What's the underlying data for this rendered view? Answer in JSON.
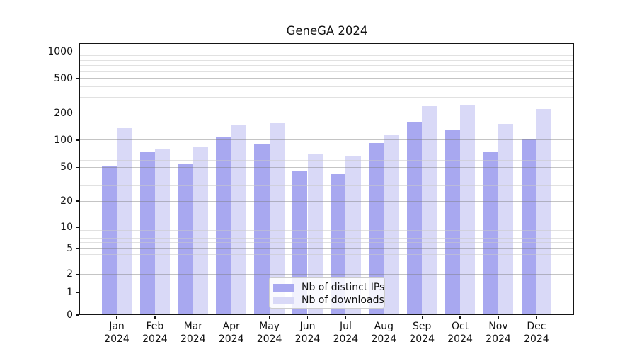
{
  "chart_data": {
    "type": "bar",
    "title": "GeneGA 2024",
    "categories": [
      "Jan",
      "Feb",
      "Mar",
      "Apr",
      "May",
      "Jun",
      "Jul",
      "Aug",
      "Sep",
      "Oct",
      "Nov",
      "Dec"
    ],
    "x_tick_second_line": "2024",
    "series": [
      {
        "name": "Nb of distinct IPs",
        "color": "#a8a8f0",
        "values": [
          52,
          74,
          55,
          110,
          89,
          45,
          42,
          93,
          160,
          130,
          75,
          104
        ]
      },
      {
        "name": "Nb of downloads",
        "color": "#d9d9f7",
        "values": [
          135,
          80,
          85,
          148,
          155,
          70,
          67,
          113,
          240,
          250,
          150,
          220
        ]
      }
    ],
    "xlabel": "",
    "ylabel": "",
    "yscale": "symlog",
    "yticks": [
      0,
      1,
      2,
      5,
      10,
      20,
      50,
      100,
      200,
      500,
      1000
    ],
    "ylim": [
      0,
      1100
    ],
    "grid": "horizontal major and minor",
    "legend_position": "lower center",
    "colors": {
      "major_grid": "#b3b3b3",
      "minor_grid": "#e2e2e2",
      "spine": "#151515",
      "background": "#ffffff"
    }
  }
}
